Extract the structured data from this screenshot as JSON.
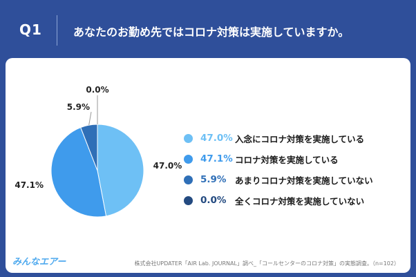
{
  "header": {
    "question_number": "Q1",
    "question_text": "あなたのお勤め先ではコロナ対策は実施していますか。"
  },
  "chart_data": {
    "type": "pie",
    "categories": [
      "入念にコロナ対策を実施している",
      "コロナ対策を実施している",
      "あまりコロナ対策を実施していない",
      "全くコロナ対策を実施していない"
    ],
    "values": [
      47.0,
      47.1,
      5.9,
      0.0
    ],
    "value_labels": [
      "47.0%",
      "47.1%",
      "5.9%",
      "0.0%"
    ],
    "colors": [
      "#6ec0f5",
      "#3f9bec",
      "#2f6fb7",
      "#234a80"
    ],
    "legend_placement": "right"
  },
  "footer": {
    "logo_text": "みんなエアー",
    "source": "株式会社UPDATER「AIR Lab. JOURNAL」調べ_「コールセンターのコロナ対策」の実態調査。（n=102）"
  }
}
